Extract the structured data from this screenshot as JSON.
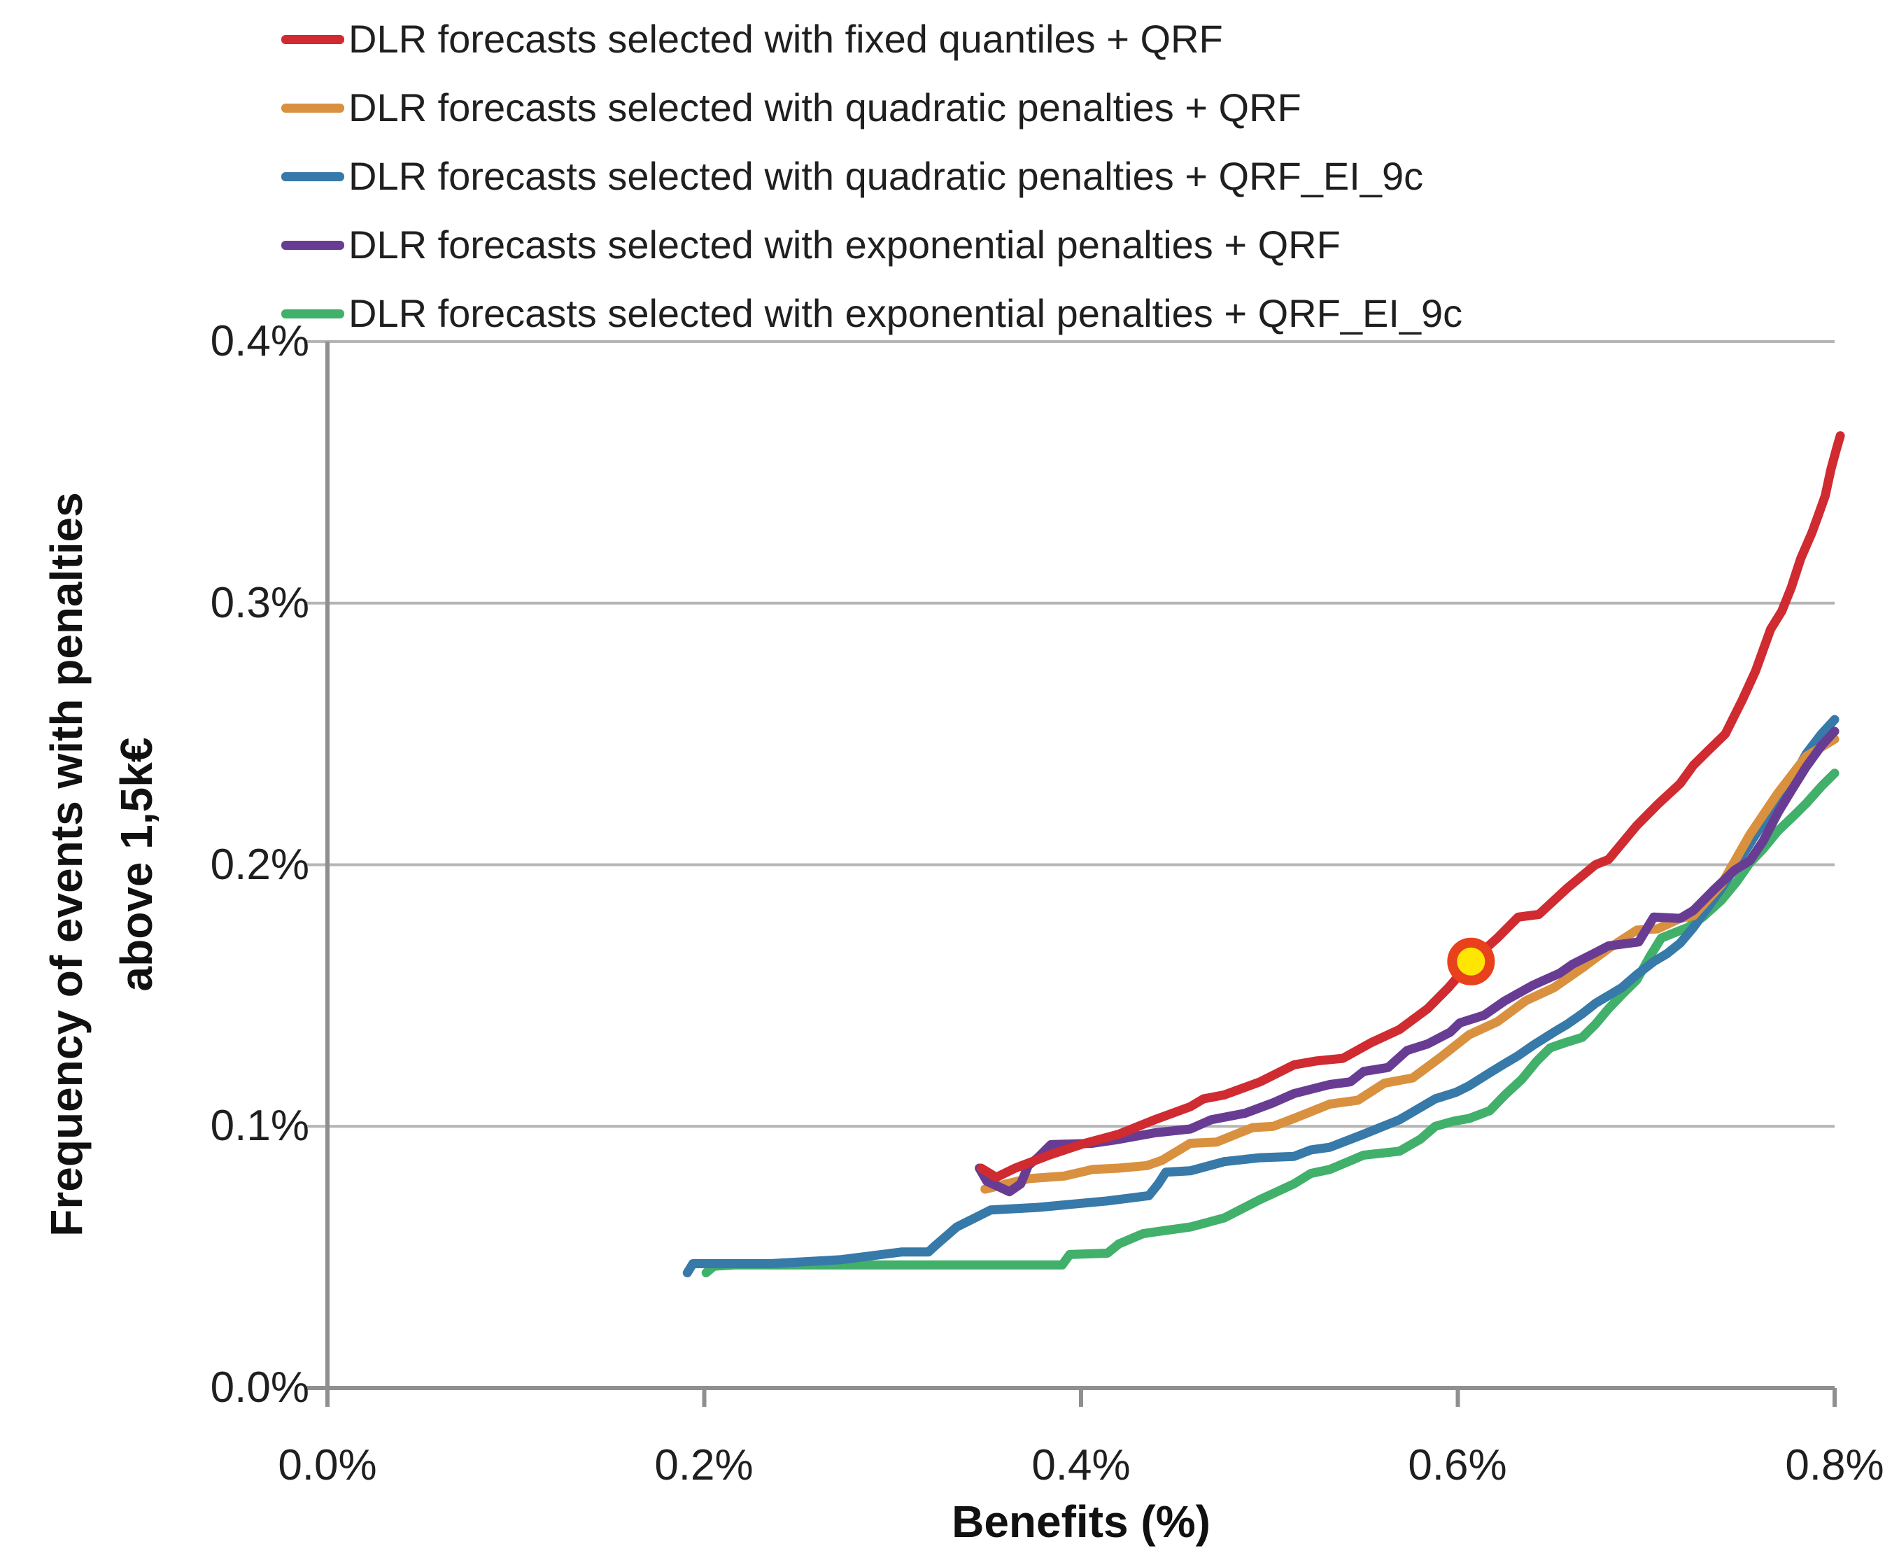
{
  "chart_data": {
    "type": "line",
    "xlabel": "Benefits (%)",
    "ylabel_line1": "Frequency of events with penalties",
    "ylabel_line2": "above 1,5k€",
    "xlim": [
      0,
      0.8
    ],
    "ylim": [
      0,
      0.4
    ],
    "x_ticks": [
      0,
      0.2,
      0.4,
      0.6,
      0.8
    ],
    "x_tick_labels": [
      "0.0%",
      "0.2%",
      "0.4%",
      "0.6%",
      "0.8%"
    ],
    "y_ticks": [
      0,
      0.1,
      0.2,
      0.3,
      0.4
    ],
    "y_tick_labels_desc": [
      "0.4%",
      "0.3%",
      "0.2%",
      "0.1%",
      "0.0%"
    ],
    "grid": "horizontal",
    "legend_position": "top-left",
    "grid_color": "#b5b5b5",
    "axis_color": "#8f8f8f",
    "text_color": "#1a1a1a",
    "series": [
      {
        "key": "fixed-quantiles-qrf",
        "name": "DLR forecasts selected with fixed quantiles + QRF",
        "color": "#cf2b31",
        "points": [
          [
            0.347,
            0.084
          ],
          [
            0.355,
            0.0805
          ],
          [
            0.365,
            0.084
          ],
          [
            0.383,
            0.089
          ],
          [
            0.402,
            0.0935
          ],
          [
            0.42,
            0.097
          ],
          [
            0.439,
            0.1025
          ],
          [
            0.458,
            0.1075
          ],
          [
            0.465,
            0.1105
          ],
          [
            0.476,
            0.112
          ],
          [
            0.495,
            0.117
          ],
          [
            0.513,
            0.1235
          ],
          [
            0.525,
            0.125
          ],
          [
            0.539,
            0.126
          ],
          [
            0.554,
            0.132
          ],
          [
            0.569,
            0.137
          ],
          [
            0.584,
            0.145
          ],
          [
            0.595,
            0.153
          ],
          [
            0.607,
            0.163
          ],
          [
            0.621,
            0.172
          ],
          [
            0.632,
            0.18
          ],
          [
            0.643,
            0.181
          ],
          [
            0.658,
            0.191
          ],
          [
            0.673,
            0.2
          ],
          [
            0.68,
            0.202
          ],
          [
            0.695,
            0.215
          ],
          [
            0.706,
            0.223
          ],
          [
            0.718,
            0.231
          ],
          [
            0.725,
            0.238
          ],
          [
            0.732,
            0.243
          ],
          [
            0.742,
            0.25
          ],
          [
            0.751,
            0.263
          ],
          [
            0.758,
            0.274
          ],
          [
            0.766,
            0.29
          ],
          [
            0.772,
            0.297
          ],
          [
            0.777,
            0.306
          ],
          [
            0.782,
            0.317
          ],
          [
            0.788,
            0.327
          ],
          [
            0.792,
            0.335
          ],
          [
            0.795,
            0.341
          ],
          [
            0.798,
            0.351
          ],
          [
            0.801,
            0.359
          ],
          [
            0.803,
            0.364
          ]
        ]
      },
      {
        "key": "quadratic-penalties-qrf",
        "name": "DLR forecasts selected with quadratic penalties + QRF",
        "color": "#d9913f",
        "points": [
          [
            0.349,
            0.076
          ],
          [
            0.372,
            0.08
          ],
          [
            0.391,
            0.081
          ],
          [
            0.406,
            0.0835
          ],
          [
            0.42,
            0.084
          ],
          [
            0.435,
            0.085
          ],
          [
            0.443,
            0.087
          ],
          [
            0.458,
            0.0935
          ],
          [
            0.472,
            0.094
          ],
          [
            0.491,
            0.0995
          ],
          [
            0.502,
            0.1
          ],
          [
            0.513,
            0.103
          ],
          [
            0.532,
            0.1085
          ],
          [
            0.547,
            0.11
          ],
          [
            0.561,
            0.1165
          ],
          [
            0.576,
            0.1185
          ],
          [
            0.591,
            0.1265
          ],
          [
            0.606,
            0.135
          ],
          [
            0.621,
            0.14
          ],
          [
            0.636,
            0.148
          ],
          [
            0.651,
            0.153
          ],
          [
            0.666,
            0.1605
          ],
          [
            0.68,
            0.168
          ],
          [
            0.695,
            0.175
          ],
          [
            0.706,
            0.1755
          ],
          [
            0.718,
            0.1795
          ],
          [
            0.725,
            0.1805
          ],
          [
            0.74,
            0.1925
          ],
          [
            0.755,
            0.2115
          ],
          [
            0.77,
            0.2275
          ],
          [
            0.785,
            0.2415
          ],
          [
            0.8,
            0.248
          ]
        ]
      },
      {
        "key": "quadratic-penalties-qrf-ei-9c",
        "name": "DLR forecasts selected with quadratic penalties + QRF_EI_9c",
        "color": "#3779a8",
        "points": [
          [
            0.191,
            0.044
          ],
          [
            0.194,
            0.0475
          ],
          [
            0.235,
            0.0475
          ],
          [
            0.272,
            0.049
          ],
          [
            0.305,
            0.052
          ],
          [
            0.319,
            0.052
          ],
          [
            0.322,
            0.054
          ],
          [
            0.334,
            0.0615
          ],
          [
            0.352,
            0.068
          ],
          [
            0.377,
            0.069
          ],
          [
            0.414,
            0.0715
          ],
          [
            0.436,
            0.0735
          ],
          [
            0.441,
            0.078
          ],
          [
            0.445,
            0.0825
          ],
          [
            0.458,
            0.083
          ],
          [
            0.476,
            0.0865
          ],
          [
            0.495,
            0.088
          ],
          [
            0.513,
            0.0885
          ],
          [
            0.522,
            0.091
          ],
          [
            0.532,
            0.092
          ],
          [
            0.55,
            0.097
          ],
          [
            0.569,
            0.1025
          ],
          [
            0.588,
            0.1105
          ],
          [
            0.599,
            0.113
          ],
          [
            0.606,
            0.1155
          ],
          [
            0.617,
            0.1205
          ],
          [
            0.625,
            0.124
          ],
          [
            0.632,
            0.127
          ],
          [
            0.64,
            0.131
          ],
          [
            0.651,
            0.136
          ],
          [
            0.658,
            0.139
          ],
          [
            0.666,
            0.143
          ],
          [
            0.673,
            0.147
          ],
          [
            0.68,
            0.15
          ],
          [
            0.687,
            0.153
          ],
          [
            0.695,
            0.158
          ],
          [
            0.704,
            0.163
          ],
          [
            0.711,
            0.166
          ],
          [
            0.718,
            0.17
          ],
          [
            0.725,
            0.176
          ],
          [
            0.733,
            0.184
          ],
          [
            0.74,
            0.191
          ],
          [
            0.747,
            0.199
          ],
          [
            0.755,
            0.208
          ],
          [
            0.762,
            0.216
          ],
          [
            0.77,
            0.225
          ],
          [
            0.778,
            0.2335
          ],
          [
            0.785,
            0.2425
          ],
          [
            0.793,
            0.25
          ],
          [
            0.8,
            0.2555
          ]
        ]
      },
      {
        "key": "exponential-penalties-qrf",
        "name": "DLR forecasts selected with exponential penalties + QRF",
        "color": "#693c94",
        "points": [
          [
            0.346,
            0.084
          ],
          [
            0.35,
            0.079
          ],
          [
            0.362,
            0.075
          ],
          [
            0.368,
            0.078
          ],
          [
            0.372,
            0.085
          ],
          [
            0.377,
            0.088
          ],
          [
            0.384,
            0.093
          ],
          [
            0.406,
            0.0935
          ],
          [
            0.42,
            0.095
          ],
          [
            0.439,
            0.0975
          ],
          [
            0.458,
            0.099
          ],
          [
            0.469,
            0.1025
          ],
          [
            0.487,
            0.105
          ],
          [
            0.502,
            0.109
          ],
          [
            0.513,
            0.1125
          ],
          [
            0.532,
            0.116
          ],
          [
            0.543,
            0.117
          ],
          [
            0.55,
            0.121
          ],
          [
            0.563,
            0.1225
          ],
          [
            0.573,
            0.129
          ],
          [
            0.584,
            0.1315
          ],
          [
            0.596,
            0.136
          ],
          [
            0.601,
            0.1395
          ],
          [
            0.614,
            0.1425
          ],
          [
            0.625,
            0.148
          ],
          [
            0.64,
            0.154
          ],
          [
            0.654,
            0.1585
          ],
          [
            0.661,
            0.162
          ],
          [
            0.672,
            0.166
          ],
          [
            0.68,
            0.169
          ],
          [
            0.696,
            0.1705
          ],
          [
            0.704,
            0.18
          ],
          [
            0.718,
            0.1795
          ],
          [
            0.725,
            0.1825
          ],
          [
            0.736,
            0.1905
          ],
          [
            0.747,
            0.198
          ],
          [
            0.755,
            0.2015
          ],
          [
            0.762,
            0.209
          ],
          [
            0.77,
            0.22
          ],
          [
            0.778,
            0.2295
          ],
          [
            0.785,
            0.2375
          ],
          [
            0.793,
            0.2455
          ],
          [
            0.8,
            0.251
          ]
        ]
      },
      {
        "key": "exponential-penalties-qrf-ei-9c",
        "name": "DLR forecasts selected with exponential penalties + QRF_EI_9c",
        "color": "#41b06a",
        "points": [
          [
            0.201,
            0.044
          ],
          [
            0.205,
            0.0465
          ],
          [
            0.216,
            0.047
          ],
          [
            0.3,
            0.047
          ],
          [
            0.39,
            0.047
          ],
          [
            0.394,
            0.051
          ],
          [
            0.414,
            0.0515
          ],
          [
            0.42,
            0.055
          ],
          [
            0.433,
            0.059
          ],
          [
            0.458,
            0.0615
          ],
          [
            0.476,
            0.065
          ],
          [
            0.495,
            0.072
          ],
          [
            0.513,
            0.078
          ],
          [
            0.522,
            0.082
          ],
          [
            0.532,
            0.0835
          ],
          [
            0.55,
            0.089
          ],
          [
            0.569,
            0.0905
          ],
          [
            0.58,
            0.095
          ],
          [
            0.588,
            0.1
          ],
          [
            0.598,
            0.102
          ],
          [
            0.606,
            0.103
          ],
          [
            0.617,
            0.106
          ],
          [
            0.625,
            0.112
          ],
          [
            0.634,
            0.118
          ],
          [
            0.642,
            0.125
          ],
          [
            0.649,
            0.13
          ],
          [
            0.657,
            0.132
          ],
          [
            0.666,
            0.134
          ],
          [
            0.673,
            0.139
          ],
          [
            0.68,
            0.145
          ],
          [
            0.688,
            0.151
          ],
          [
            0.695,
            0.156
          ],
          [
            0.702,
            0.165
          ],
          [
            0.708,
            0.172
          ],
          [
            0.715,
            0.174
          ],
          [
            0.722,
            0.176
          ],
          [
            0.73,
            0.18
          ],
          [
            0.74,
            0.1865
          ],
          [
            0.748,
            0.1935
          ],
          [
            0.755,
            0.2007
          ],
          [
            0.762,
            0.206
          ],
          [
            0.77,
            0.213
          ],
          [
            0.778,
            0.2185
          ],
          [
            0.785,
            0.2235
          ],
          [
            0.793,
            0.23
          ],
          [
            0.8,
            0.235
          ]
        ]
      }
    ],
    "marker": {
      "x": 0.607,
      "y": 0.163,
      "series": "fixed-quantiles-qrf",
      "fill": "#ffe600",
      "stroke": "#e8411c"
    }
  }
}
